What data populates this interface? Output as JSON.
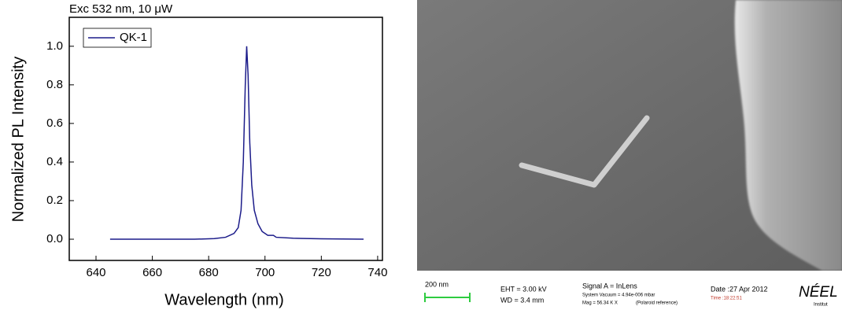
{
  "chart_data": {
    "type": "line",
    "title": "Exc 532 nm, 10 μW",
    "xlabel": "Wavelength (nm)",
    "ylabel": "Normalized PL Intensity",
    "x": [
      645,
      660,
      675,
      682,
      686,
      689,
      690.5,
      691.5,
      692.3,
      693,
      693.5,
      694,
      694.6,
      695.3,
      696.2,
      697.5,
      699,
      701,
      703,
      704,
      710,
      720,
      735
    ],
    "series": [
      {
        "name": "QK-1",
        "color": "#1c1c8a",
        "values": [
          0,
          0,
          0,
          0.003,
          0.01,
          0.03,
          0.06,
          0.15,
          0.4,
          0.8,
          1.0,
          0.85,
          0.5,
          0.28,
          0.15,
          0.08,
          0.04,
          0.02,
          0.02,
          0.01,
          0.005,
          0.002,
          0
        ]
      }
    ],
    "xlim": [
      630.5,
      741.7
    ],
    "ylim": [
      -0.11,
      1.15
    ],
    "xticks": [
      640,
      660,
      680,
      700,
      720,
      740
    ],
    "yticks": [
      {
        "value": 0,
        "label": "0.0"
      },
      0.2,
      0.4,
      0.6,
      0.8,
      {
        "value": 1,
        "label": "1.0"
      }
    ],
    "legend": "upper-left"
  },
  "sem_image": {
    "scale_bar": "200 nm",
    "eht": "EHT =  3.00 kV",
    "wd": "WD =  3.4 mm",
    "signal": "Signal A = InLens",
    "vacuum": "System Vacuum = 4.94e-006 mbar",
    "mag": "Mag =  56.34 K X",
    "reference": "(Polaroid reference)",
    "date": "Date :27 Apr 2012",
    "time": "Time :18:22:51",
    "logo": "NÉEL",
    "logo_sub": "Institut"
  }
}
